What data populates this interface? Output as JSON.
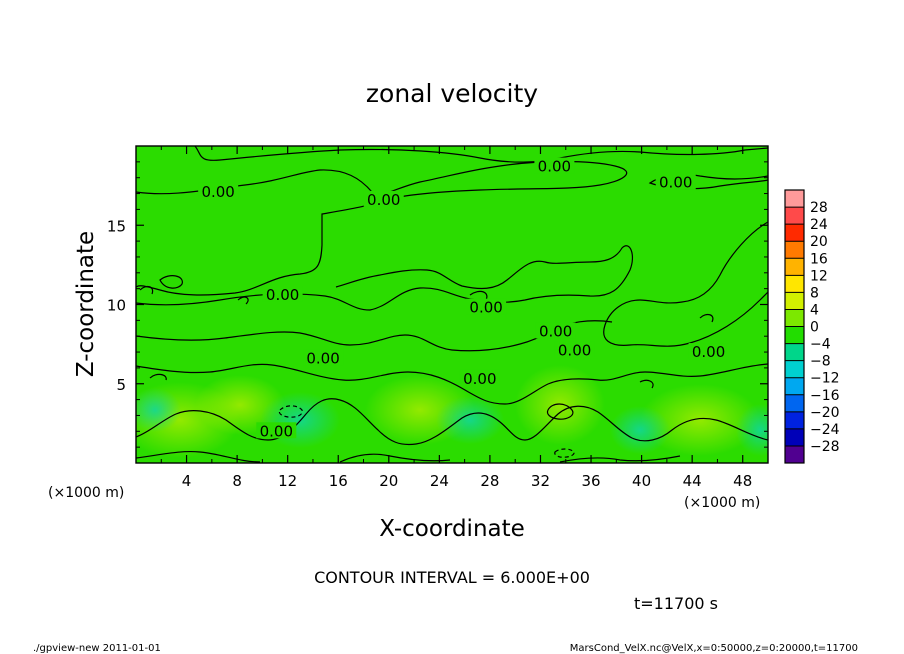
{
  "chart_data": {
    "type": "contour",
    "title": "zonal velocity",
    "xlabel": "X-coordinate",
    "ylabel": "Z-coordinate",
    "x_unit": "(×1000 m)",
    "y_unit": "(×1000 m)",
    "xlim": [
      0,
      50
    ],
    "ylim": [
      0,
      20
    ],
    "x_ticks": [
      "4",
      "8",
      "12",
      "16",
      "20",
      "24",
      "28",
      "32",
      "36",
      "40",
      "44",
      "48"
    ],
    "y_ticks": [
      "5",
      "10",
      "15"
    ],
    "contour_interval": "CONTOUR INTERVAL = 6.000E+00",
    "contour_labels": [
      {
        "text": "0.00",
        "x": 6.5,
        "z": 17.1
      },
      {
        "text": "0.00",
        "x": 19.6,
        "z": 16.6
      },
      {
        "text": "0.00",
        "x": 33.1,
        "z": 18.7
      },
      {
        "text": "0.00",
        "x": 42.7,
        "z": 17.7
      },
      {
        "text": "0.00",
        "x": 11.6,
        "z": 10.6
      },
      {
        "text": "0.00",
        "x": 27.7,
        "z": 9.8
      },
      {
        "text": "0.00",
        "x": 33.2,
        "z": 8.3
      },
      {
        "text": "0.00",
        "x": 34.7,
        "z": 7.1
      },
      {
        "text": "0.00",
        "x": 14.8,
        "z": 6.6
      },
      {
        "text": "0.00",
        "x": 27.2,
        "z": 5.3
      },
      {
        "text": "0.00",
        "x": 45.3,
        "z": 7.0
      },
      {
        "text": "0.00",
        "x": 11.1,
        "z": 2.0
      }
    ],
    "colorbar": {
      "levels": [
        "28",
        "24",
        "20",
        "16",
        "12",
        "8",
        "4",
        "0",
        "−4",
        "−8",
        "−12",
        "−16",
        "−20",
        "−24",
        "−28"
      ],
      "colors": [
        "#ff9a9a",
        "#ff4a4a",
        "#ff2a00",
        "#ff7a00",
        "#ffb300",
        "#ffe600",
        "#d2f000",
        "#7ce800",
        "#22dd00",
        "#00d68a",
        "#00d0d0",
        "#00a8f0",
        "#0066f0",
        "#0022e0",
        "#0000b8",
        "#500090"
      ]
    },
    "grid": false,
    "legend": "right"
  },
  "annotations": {
    "time": "t=11700 s",
    "footer_left": "./gpview-new   2011-01-01",
    "footer_right": "MarsCond_VelX.nc@VelX,x=0:50000,z=0:20000,t=11700"
  },
  "colors": {
    "field_base": "#2bdc00",
    "contour": "#000000"
  }
}
